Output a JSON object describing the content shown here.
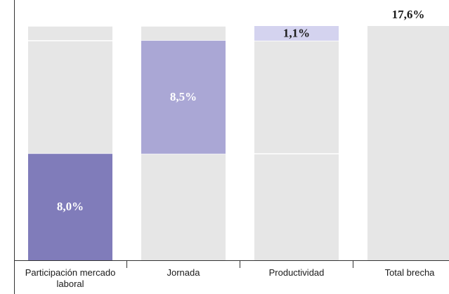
{
  "chart_data": {
    "type": "waterfall",
    "categories": [
      "Participación mercado laboral",
      "Jornada",
      "Productividad",
      "Total brecha"
    ],
    "values": [
      8.0,
      8.5,
      1.1,
      17.6
    ],
    "value_labels": [
      "8,0%",
      "8,5%",
      "1,1%",
      "17,6%"
    ],
    "is_total": [
      false,
      false,
      false,
      true
    ],
    "colors": [
      "#807cba",
      "#aaa7d5",
      "#d4d3ef",
      "#e6e6e6"
    ],
    "label_colors": [
      "#ffffff",
      "#ffffff",
      "#1a1a1a",
      "#1a1a1a"
    ],
    "background_color": "#e6e6e6",
    "ylim": [
      0,
      17.6
    ]
  }
}
